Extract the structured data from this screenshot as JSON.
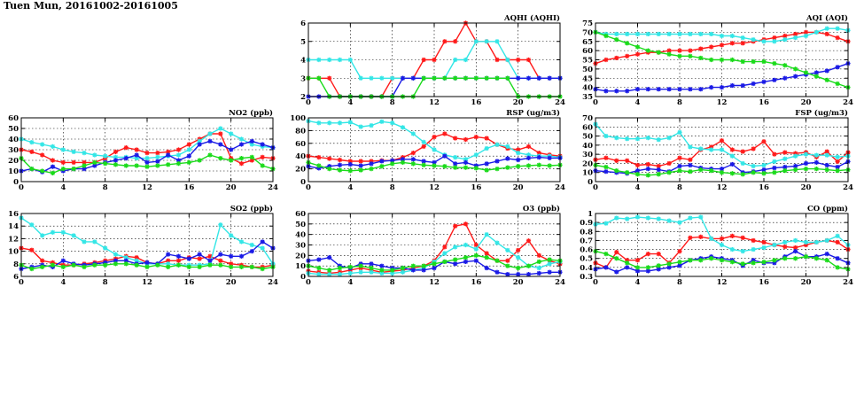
{
  "page": {
    "title": "Tuen Mun, 20161002-20161005"
  },
  "colors": {
    "red": "#ff1a1a",
    "cyan": "#33e6e6",
    "blue": "#1a1ae6",
    "green": "#1adb1a"
  },
  "chart_data": [
    {
      "type": "line",
      "title": "AQHI (AQHI)",
      "x_ticks": [
        0,
        4,
        8,
        12,
        16,
        20,
        24
      ],
      "xlim": [
        0,
        24
      ],
      "ylim": [
        2,
        6
      ],
      "y_ticks": [
        2,
        3,
        4,
        5,
        6
      ],
      "series": [
        {
          "color": "red",
          "values": [
            3,
            3,
            3,
            2,
            2,
            2,
            2,
            2,
            3,
            3,
            3,
            4,
            4,
            5,
            5,
            6,
            5,
            5,
            4,
            4,
            4,
            4,
            3,
            3,
            3
          ]
        },
        {
          "color": "cyan",
          "values": [
            4,
            4,
            4,
            4,
            4,
            3,
            3,
            3,
            3,
            3,
            3,
            3,
            3,
            3,
            4,
            4,
            5,
            5,
            5,
            4,
            3,
            3,
            3,
            3,
            3
          ]
        },
        {
          "color": "blue",
          "values": [
            2,
            2,
            2,
            2,
            2,
            2,
            2,
            2,
            2,
            3,
            3,
            3,
            3,
            3,
            3,
            3,
            3,
            3,
            3,
            3,
            3,
            3,
            3,
            3,
            3
          ]
        },
        {
          "color": "green",
          "values": [
            3,
            3,
            2,
            2,
            2,
            2,
            2,
            2,
            2,
            2,
            2,
            3,
            3,
            3,
            3,
            3,
            3,
            3,
            3,
            3,
            2,
            2,
            2,
            2,
            2
          ]
        }
      ]
    },
    {
      "type": "line",
      "title": "AQI (AQI)",
      "x_ticks": [
        0,
        4,
        8,
        12,
        16,
        20,
        24
      ],
      "xlim": [
        0,
        24
      ],
      "ylim": [
        35,
        75
      ],
      "y_ticks": [
        35,
        40,
        45,
        50,
        55,
        60,
        65,
        70,
        75
      ],
      "series": [
        {
          "color": "red",
          "values": [
            53,
            55,
            56,
            57,
            58,
            59,
            59,
            60,
            60,
            60,
            61,
            62,
            63,
            64,
            64,
            65,
            66,
            67,
            68,
            69,
            70,
            70,
            69,
            67,
            65
          ]
        },
        {
          "color": "cyan",
          "values": [
            70,
            69,
            69,
            69,
            69,
            69,
            69,
            69,
            69,
            69,
            69,
            69,
            68,
            68,
            67,
            66,
            65,
            65,
            66,
            67,
            68,
            70,
            72,
            72,
            71
          ]
        },
        {
          "color": "blue",
          "values": [
            39,
            38,
            38,
            38,
            39,
            39,
            39,
            39,
            39,
            39,
            39,
            40,
            40,
            41,
            41,
            42,
            43,
            44,
            45,
            46,
            47,
            48,
            49,
            51,
            53
          ]
        },
        {
          "color": "green",
          "values": [
            70,
            68,
            66,
            64,
            62,
            60,
            59,
            58,
            57,
            57,
            56,
            55,
            55,
            55,
            54,
            54,
            54,
            53,
            52,
            50,
            48,
            46,
            44,
            42,
            40
          ]
        }
      ]
    },
    {
      "type": "line",
      "title": "NO2 (ppb)",
      "x_ticks": [
        0,
        4,
        8,
        12,
        16,
        20,
        24
      ],
      "xlim": [
        0,
        24
      ],
      "ylim": [
        0,
        60
      ],
      "y_ticks": [
        0,
        10,
        20,
        30,
        40,
        50,
        60
      ],
      "series": [
        {
          "color": "red",
          "values": [
            30,
            28,
            25,
            20,
            18,
            18,
            18,
            18,
            22,
            28,
            32,
            30,
            27,
            27,
            28,
            30,
            35,
            40,
            45,
            45,
            22,
            17,
            20,
            23,
            22
          ]
        },
        {
          "color": "cyan",
          "values": [
            40,
            37,
            35,
            33,
            30,
            28,
            27,
            25,
            24,
            23,
            23,
            22,
            22,
            23,
            24,
            25,
            30,
            38,
            45,
            50,
            45,
            40,
            35,
            33,
            32
          ]
        },
        {
          "color": "blue",
          "values": [
            10,
            12,
            9,
            14,
            10,
            12,
            12,
            15,
            18,
            20,
            22,
            25,
            18,
            19,
            25,
            20,
            24,
            35,
            38,
            35,
            30,
            35,
            38,
            35,
            32
          ]
        },
        {
          "color": "green",
          "values": [
            22,
            12,
            10,
            8,
            12,
            12,
            15,
            18,
            17,
            16,
            15,
            15,
            14,
            15,
            16,
            17,
            18,
            20,
            25,
            22,
            20,
            22,
            23,
            15,
            12
          ]
        }
      ]
    },
    {
      "type": "line",
      "title": "RSP (ug/m3)",
      "x_ticks": [
        0,
        4,
        8,
        12,
        16,
        20,
        24
      ],
      "xlim": [
        0,
        24
      ],
      "ylim": [
        0,
        100
      ],
      "y_ticks": [
        0,
        20,
        40,
        60,
        80,
        100
      ],
      "series": [
        {
          "color": "red",
          "values": [
            40,
            38,
            36,
            34,
            32,
            32,
            32,
            33,
            33,
            38,
            45,
            55,
            70,
            75,
            68,
            66,
            70,
            68,
            58,
            52,
            50,
            55,
            45,
            42,
            40
          ]
        },
        {
          "color": "cyan",
          "values": [
            95,
            92,
            92,
            92,
            93,
            86,
            88,
            94,
            92,
            85,
            75,
            62,
            50,
            42,
            38,
            35,
            42,
            52,
            58,
            55,
            45,
            42,
            40,
            40,
            38
          ]
        },
        {
          "color": "blue",
          "values": [
            24,
            21,
            24,
            26,
            27,
            25,
            28,
            32,
            33,
            35,
            35,
            32,
            30,
            40,
            28,
            30,
            25,
            28,
            32,
            36,
            34,
            37,
            38,
            37,
            37
          ]
        },
        {
          "color": "green",
          "values": [
            30,
            25,
            20,
            18,
            17,
            18,
            20,
            24,
            28,
            30,
            28,
            26,
            25,
            24,
            22,
            22,
            21,
            18,
            20,
            22,
            24,
            25,
            26,
            25,
            26
          ]
        }
      ]
    },
    {
      "type": "line",
      "title": "FSP (ug/m3)",
      "x_ticks": [
        0,
        4,
        8,
        12,
        16,
        20,
        24
      ],
      "xlim": [
        0,
        24
      ],
      "ylim": [
        0,
        70
      ],
      "y_ticks": [
        0,
        10,
        20,
        30,
        40,
        50,
        60,
        70
      ],
      "series": [
        {
          "color": "red",
          "values": [
            24,
            26,
            23,
            23,
            18,
            19,
            17,
            20,
            26,
            24,
            35,
            38,
            45,
            35,
            33,
            36,
            44,
            30,
            32,
            31,
            32,
            27,
            33,
            22,
            32
          ]
        },
        {
          "color": "cyan",
          "values": [
            63,
            50,
            48,
            47,
            47,
            48,
            46,
            48,
            54,
            38,
            36,
            35,
            35,
            28,
            20,
            17,
            18,
            22,
            25,
            28,
            30,
            29,
            29,
            27,
            28
          ]
        },
        {
          "color": "blue",
          "values": [
            12,
            11,
            10,
            9,
            12,
            14,
            13,
            11,
            17,
            18,
            15,
            14,
            14,
            19,
            10,
            11,
            13,
            15,
            16,
            17,
            20,
            21,
            18,
            16,
            22
          ]
        },
        {
          "color": "green",
          "values": [
            18,
            16,
            12,
            10,
            8,
            7,
            8,
            10,
            12,
            11,
            13,
            12,
            10,
            9,
            8,
            10,
            9,
            10,
            12,
            13,
            14,
            14,
            13,
            12,
            13
          ]
        }
      ]
    },
    {
      "type": "line",
      "title": "SO2 (ppb)",
      "x_ticks": [
        0,
        4,
        8,
        12,
        16,
        20,
        24
      ],
      "xlim": [
        0,
        24
      ],
      "ylim": [
        6,
        16
      ],
      "y_ticks": [
        6,
        8,
        10,
        12,
        14,
        16
      ],
      "series": [
        {
          "color": "red",
          "values": [
            10.5,
            10.2,
            8.5,
            8.2,
            7.8,
            7.8,
            8.0,
            8.2,
            8.5,
            8.8,
            9.2,
            9.0,
            8.2,
            8.0,
            8.5,
            8.5,
            9.0,
            8.8,
            9.2,
            8.5,
            8.0,
            7.8,
            7.5,
            7.5,
            7.8
          ]
        },
        {
          "color": "cyan",
          "values": [
            15.3,
            14.2,
            12.5,
            13.0,
            13.0,
            12.5,
            11.5,
            11.5,
            10.5,
            9.5,
            9.0,
            8.5,
            8.0,
            8.0,
            8.0,
            7.8,
            7.8,
            7.8,
            8.0,
            14.2,
            12.5,
            11.5,
            11.0,
            10.5,
            8.0
          ]
        },
        {
          "color": "blue",
          "values": [
            7.2,
            7.5,
            7.8,
            7.5,
            8.5,
            8.0,
            7.8,
            8.0,
            8.2,
            8.5,
            8.5,
            8.0,
            8.2,
            8.0,
            9.5,
            9.2,
            8.8,
            9.5,
            8.5,
            9.5,
            9.2,
            9.2,
            10.0,
            11.5,
            10.5
          ]
        },
        {
          "color": "green",
          "values": [
            7.8,
            7.2,
            7.5,
            7.8,
            7.5,
            7.8,
            7.5,
            7.8,
            7.8,
            8.0,
            8.0,
            7.8,
            7.5,
            7.8,
            7.5,
            7.8,
            7.5,
            7.5,
            7.8,
            7.8,
            7.5,
            7.5,
            7.5,
            7.2,
            7.5
          ]
        }
      ]
    },
    {
      "type": "line",
      "title": "O3 (ppb)",
      "x_ticks": [
        0,
        4,
        8,
        12,
        16,
        20,
        24
      ],
      "xlim": [
        0,
        24
      ],
      "ylim": [
        0,
        60
      ],
      "y_ticks": [
        0,
        10,
        20,
        30,
        40,
        50,
        60
      ],
      "series": [
        {
          "color": "red",
          "values": [
            5,
            4,
            3,
            4,
            6,
            8,
            6,
            4,
            5,
            6,
            8,
            10,
            15,
            28,
            48,
            50,
            30,
            22,
            15,
            15,
            25,
            34,
            20,
            15,
            12
          ]
        },
        {
          "color": "cyan",
          "values": [
            3,
            2,
            2,
            2,
            3,
            4,
            4,
            3,
            3,
            4,
            6,
            8,
            14,
            22,
            28,
            30,
            26,
            40,
            32,
            25,
            18,
            10,
            8,
            12,
            14
          ]
        },
        {
          "color": "blue",
          "values": [
            15,
            16,
            18,
            10,
            8,
            12,
            12,
            10,
            8,
            8,
            6,
            6,
            8,
            14,
            12,
            14,
            15,
            8,
            4,
            2,
            2,
            2,
            3,
            4,
            4
          ]
        },
        {
          "color": "green",
          "values": [
            10,
            8,
            6,
            8,
            9,
            10,
            8,
            6,
            6,
            8,
            10,
            10,
            12,
            14,
            16,
            18,
            20,
            18,
            15,
            10,
            8,
            10,
            14,
            16,
            15
          ]
        }
      ]
    },
    {
      "type": "line",
      "title": "CO (ppm)",
      "x_ticks": [
        0,
        4,
        8,
        12,
        16,
        20,
        24
      ],
      "xlim": [
        0,
        24
      ],
      "ylim": [
        0.3,
        1.0
      ],
      "y_ticks": [
        0.3,
        0.4,
        0.5,
        0.6,
        0.7,
        0.8,
        0.9,
        1.0
      ],
      "series": [
        {
          "color": "red",
          "values": [
            0.45,
            0.4,
            0.57,
            0.48,
            0.48,
            0.55,
            0.55,
            0.45,
            0.58,
            0.73,
            0.74,
            0.72,
            0.72,
            0.75,
            0.73,
            0.7,
            0.68,
            0.65,
            0.63,
            0.62,
            0.65,
            0.68,
            0.7,
            0.68,
            0.6
          ]
        },
        {
          "color": "cyan",
          "values": [
            0.88,
            0.89,
            0.95,
            0.94,
            0.96,
            0.95,
            0.94,
            0.92,
            0.9,
            0.95,
            0.96,
            0.72,
            0.65,
            0.6,
            0.58,
            0.6,
            0.62,
            0.65,
            0.68,
            0.7,
            0.68,
            0.68,
            0.7,
            0.75,
            0.65
          ]
        },
        {
          "color": "blue",
          "values": [
            0.38,
            0.4,
            0.35,
            0.4,
            0.36,
            0.36,
            0.38,
            0.4,
            0.42,
            0.48,
            0.5,
            0.52,
            0.5,
            0.48,
            0.42,
            0.48,
            0.45,
            0.45,
            0.52,
            0.58,
            0.52,
            0.52,
            0.55,
            0.5,
            0.45
          ]
        },
        {
          "color": "green",
          "values": [
            0.58,
            0.55,
            0.5,
            0.45,
            0.4,
            0.4,
            0.42,
            0.44,
            0.46,
            0.48,
            0.48,
            0.5,
            0.48,
            0.46,
            0.44,
            0.45,
            0.46,
            0.48,
            0.5,
            0.5,
            0.52,
            0.5,
            0.48,
            0.4,
            0.38
          ]
        }
      ]
    }
  ]
}
